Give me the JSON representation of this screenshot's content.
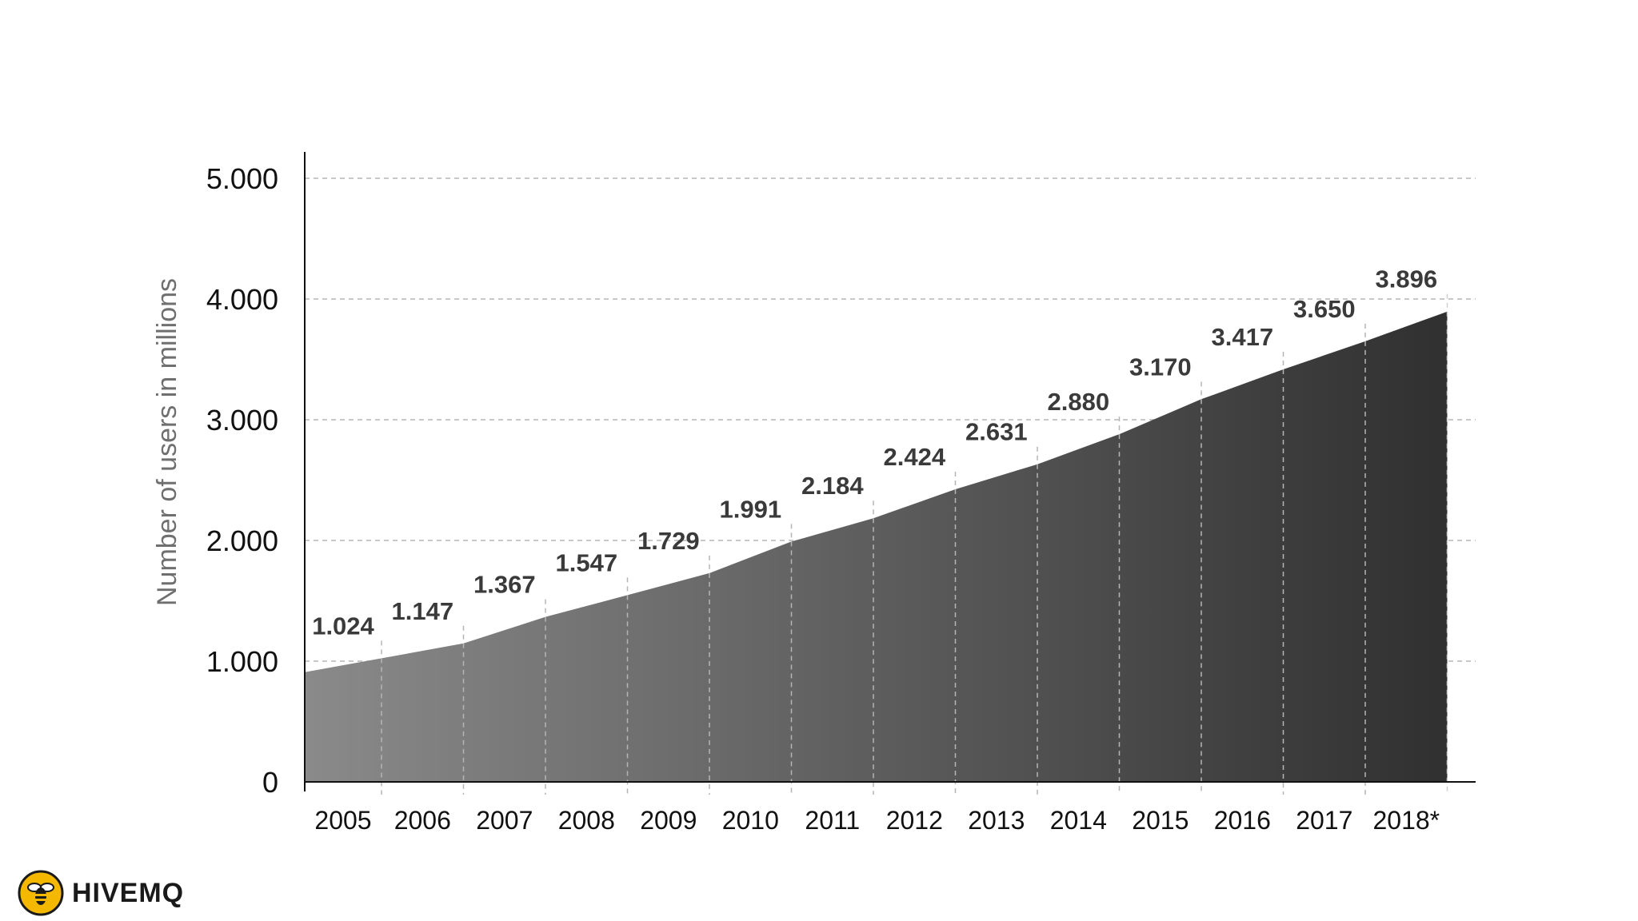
{
  "chart_data": {
    "type": "area",
    "categories": [
      "2005",
      "2006",
      "2007",
      "2008",
      "2009",
      "2010",
      "2011",
      "2012",
      "2013",
      "2014",
      "2015",
      "2016",
      "2017",
      "2018*"
    ],
    "values": [
      1024,
      1147,
      1367,
      1547,
      1729,
      1991,
      2184,
      2424,
      2631,
      2880,
      3170,
      3417,
      3650,
      3896
    ],
    "data_labels": [
      "1.024",
      "1.147",
      "1.367",
      "1.547",
      "1.729",
      "1.991",
      "2.184",
      "2.424",
      "2.631",
      "2.880",
      "3.170",
      "3.417",
      "3.650",
      "3.896"
    ],
    "title": "",
    "xlabel": "",
    "ylabel": "Number of users in millions",
    "ylim": [
      0,
      5000
    ],
    "yticks": [
      0,
      1000,
      2000,
      3000,
      4000,
      5000
    ],
    "ytick_labels": [
      "0",
      "1.000",
      "2.000",
      "3.000",
      "4.000",
      "5.000"
    ],
    "grid": "horizontal dashed",
    "legend": "none",
    "colors": {
      "area_light": "#8a8a8a",
      "area_dark": "#303030",
      "grid": "#b5b5b5",
      "axis": "#111111"
    }
  },
  "logo": {
    "text": "HIVEMQ",
    "icon": "bee-icon",
    "accent": "#f5b800"
  }
}
